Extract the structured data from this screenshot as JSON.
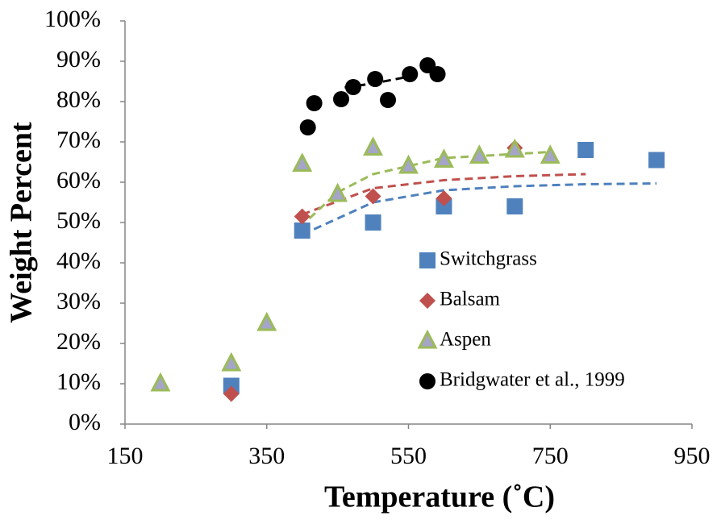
{
  "chart_data": {
    "type": "scatter",
    "xlabel": "Temperature (˚C)",
    "ylabel": "Weight Percent",
    "xlim": [
      150,
      950
    ],
    "xticks": [
      150,
      350,
      550,
      750,
      950
    ],
    "ylim": [
      0,
      100
    ],
    "yticks": [
      {
        "value": 0,
        "label": "0%"
      },
      {
        "value": 10,
        "label": "10%"
      },
      {
        "value": 20,
        "label": "20%"
      },
      {
        "value": 30,
        "label": "30%"
      },
      {
        "value": 40,
        "label": "40%"
      },
      {
        "value": 50,
        "label": "50%"
      },
      {
        "value": 60,
        "label": "60%"
      },
      {
        "value": 70,
        "label": "70%"
      },
      {
        "value": 80,
        "label": "80%"
      },
      {
        "value": 90,
        "label": "90%"
      },
      {
        "value": 100,
        "label": "100%"
      }
    ],
    "grid": false,
    "legend": "right",
    "series": [
      {
        "name": "Switchgrass",
        "color": "#4f81bd",
        "marker": "square",
        "x": [
          300,
          400,
          500,
          600,
          700,
          800,
          900
        ],
        "values": [
          9.5,
          48,
          50,
          54,
          54,
          68,
          65.5
        ],
        "trend": {
          "x": [
            400,
            500,
            600,
            700,
            800,
            900
          ],
          "values": [
            47,
            55,
            58,
            59,
            59.5,
            59.7
          ]
        }
      },
      {
        "name": "Balsam",
        "color": "#c0504d",
        "marker": "diamond",
        "x": [
          300,
          400,
          500,
          600,
          700
        ],
        "values": [
          7.5,
          51.5,
          56.5,
          56,
          68.5
        ],
        "trend": {
          "x": [
            400,
            500,
            600,
            700,
            800
          ],
          "values": [
            52,
            58.5,
            60.5,
            61.5,
            62
          ]
        }
      },
      {
        "name": "Aspen",
        "color": "#9bbb59",
        "marker": "triangle",
        "x": [
          200,
          300,
          350,
          400,
          450,
          500,
          550,
          600,
          650,
          700,
          750
        ],
        "values": [
          10,
          15,
          25,
          64.5,
          57,
          68.5,
          64,
          65.5,
          66.5,
          68,
          66.5
        ],
        "trend": {
          "x": [
            410,
            450,
            500,
            600,
            750
          ],
          "values": [
            51,
            57.5,
            62,
            66,
            67.5
          ]
        }
      },
      {
        "name": "Bridgwater et al., 1999",
        "color": "#000000",
        "marker": "circle",
        "x": [
          408,
          417,
          455,
          472,
          503,
          521,
          552,
          577,
          591
        ],
        "values": [
          73.6,
          79.6,
          80.6,
          83.6,
          85.6,
          80.4,
          86.8,
          89,
          86.8
        ],
        "trend": {
          "x": [
            460,
            500,
            545
          ],
          "values": [
            83.5,
            84.5,
            86
          ]
        }
      }
    ]
  }
}
